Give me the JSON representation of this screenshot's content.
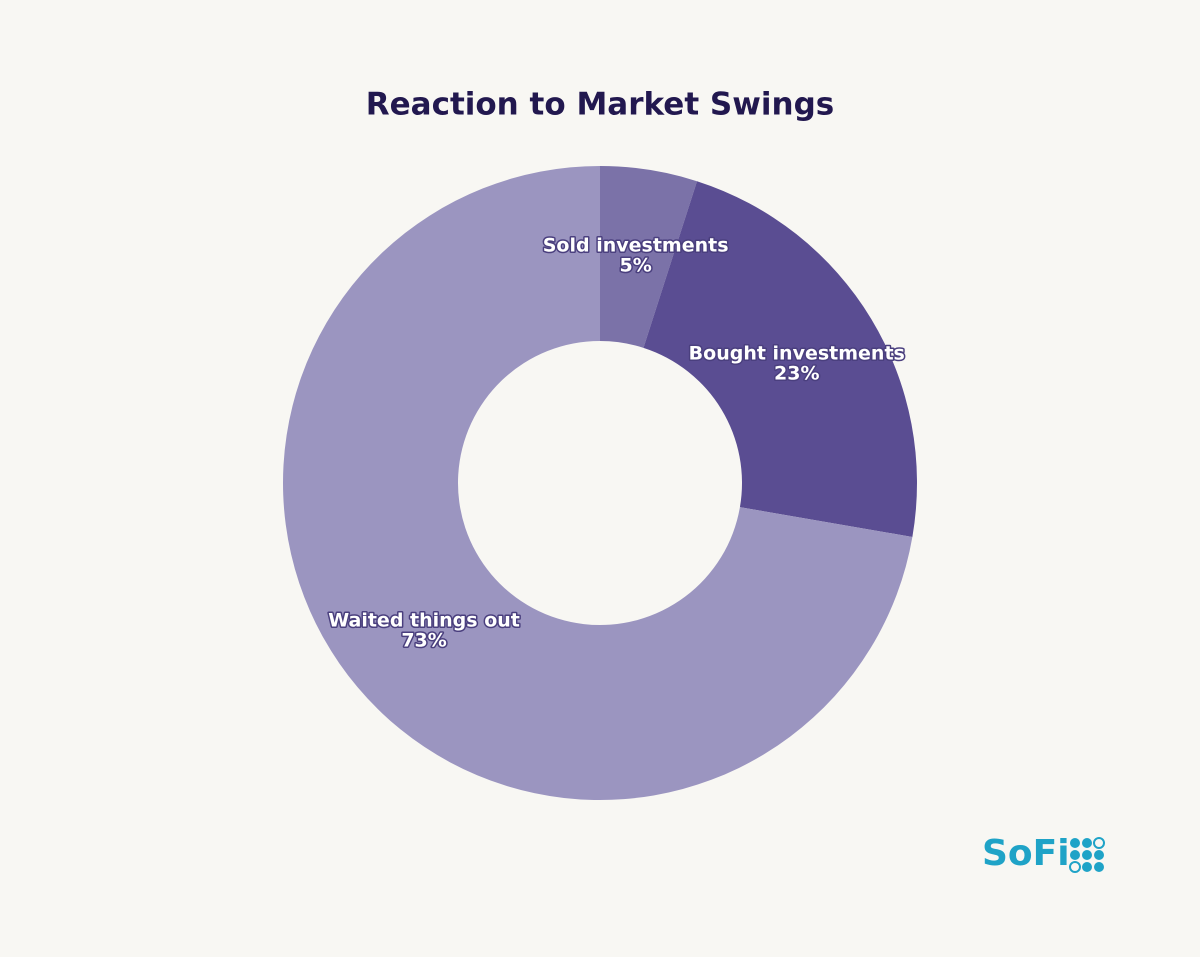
{
  "chart_data": {
    "type": "donut",
    "title": "Reaction to Market Swings",
    "categories": [
      "Sold investments",
      "Bought investments",
      "Waited things out"
    ],
    "values": [
      5,
      23,
      73
    ],
    "value_labels": [
      "5%",
      "23%",
      "73%"
    ],
    "colors": [
      "#7b72a8",
      "#5a4d92",
      "#9b95c0"
    ]
  },
  "logo": "SoFi"
}
